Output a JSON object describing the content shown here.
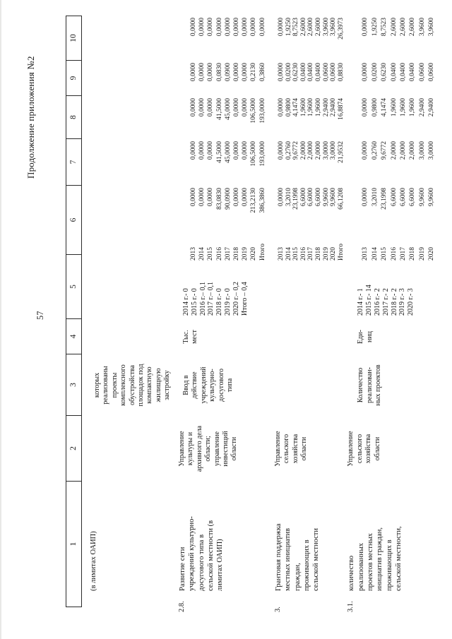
{
  "page": {
    "title": "Продолжение приложения №2",
    "number": "57"
  },
  "table": {
    "header_cells": [
      "1",
      "2",
      "3",
      "4",
      "5",
      "6",
      "7",
      "8",
      "9",
      "10"
    ],
    "continuation_row": {
      "col1": "(в лимитах ОАИП)",
      "col3_lines": [
        "которых",
        "реализованы",
        "проекты",
        "комплексного",
        "обустройства",
        "площадок под",
        "компактную",
        "жилищную",
        "застройку"
      ]
    },
    "rows": [
      {
        "num": "2.8.",
        "name_lines": [
          "Развитие сети",
          "учреждений культурно-",
          "досугового типа в",
          "сельской местности (в",
          "лимитах ОАИП)"
        ],
        "executor_lines": [
          "Управление",
          "культуры и",
          "архивного дела",
          "области;",
          "управление",
          "инвестиций",
          "области"
        ],
        "indicator_lines": [
          "Ввод в",
          "действие",
          "учреждений",
          "культурно-",
          "досугового",
          "типа"
        ],
        "unit_lines": [
          "Тыс.",
          "мест"
        ],
        "values_lines": [
          "2014 г.- 0",
          "2015 г.- 0",
          "2016 г.– 0,1",
          "2017 г.– 0,1",
          "2018 г.- 0",
          "2019 г.- 0",
          "2020 г.– 0,2",
          "Итого – 0,4"
        ],
        "finance": [
          [
            "2013",
            "0,0000",
            "0,0000",
            "0,0000",
            "0,0000",
            "0,0000"
          ],
          [
            "2014",
            "0,0000",
            "0,0000",
            "0,0000",
            "0,0000",
            "0,0000"
          ],
          [
            "2015",
            "0,0000",
            "0,0000",
            "0,0000",
            "0,0000",
            "0,0000"
          ],
          [
            "2016",
            "83,0830",
            "41,5000",
            "41,5000",
            "0,0830",
            "0,0000"
          ],
          [
            "2017",
            "90,0900",
            "45,0000",
            "45,0000",
            "0,0900",
            "0,0000"
          ],
          [
            "2018",
            "0,0000",
            "0,0000",
            "0,0000",
            "0,0000",
            "0,0000"
          ],
          [
            "2019",
            "0,0000",
            "0,0000",
            "0,0000",
            "0,0000",
            "0,0000"
          ],
          [
            "2020",
            "213,2130",
            "106,5000",
            "106,5000",
            "0,2130",
            "0,0000"
          ],
          [
            "Итого",
            "386,3860",
            "193,0000",
            "193,0000",
            "0,3860",
            "0,0000"
          ]
        ]
      },
      {
        "num": "3.",
        "name_lines": [
          "Грантовая поддержка",
          "местных инициатив",
          "граждан,",
          "проживающих в",
          "сельской местности"
        ],
        "executor_lines": [
          "Управление",
          "сельского",
          "хозяйства",
          "области"
        ],
        "indicator_lines": [],
        "unit_lines": [],
        "values_lines": [],
        "finance": [
          [
            "2013",
            "0,0000",
            "0,0000",
            "0,0000",
            "0,0000",
            "0,0000"
          ],
          [
            "2014",
            "3,2010",
            "0,2760",
            "0,9800",
            "0,0200",
            "1,9250"
          ],
          [
            "2015",
            "23,1998",
            "9,6772",
            "4,1474",
            "0,6230",
            "8,7523"
          ],
          [
            "2016",
            "6,6000",
            "2,0000",
            "1,9600",
            "0,0400",
            "2,6000"
          ],
          [
            "2017",
            "6,6000",
            "2,0000",
            "1,9600",
            "0,0400",
            "2,6000"
          ],
          [
            "2018",
            "6,6000",
            "2,0000",
            "1,9600",
            "0,0400",
            "2,6000"
          ],
          [
            "2019",
            "9,9600",
            "3,0000",
            "2,9400",
            "0,0600",
            "3,9600"
          ],
          [
            "2020",
            "9,9600",
            "3,0000",
            "2,9400",
            "0,0600",
            "3,9600"
          ],
          [
            "Итого",
            "66,1208",
            "21,9532",
            "16,8874",
            "0,8830",
            "26,3973"
          ]
        ]
      },
      {
        "num": "3.1.",
        "name_lines": [
          "количество",
          "реализованных",
          "проектов местных",
          "инициатив граждан,",
          "проживающих в",
          "сельской местности,"
        ],
        "executor_lines": [
          "Управление",
          "сельского",
          "хозяйства",
          "области"
        ],
        "indicator_lines": [
          "Количество",
          "реализован-",
          "ных проектов"
        ],
        "unit_lines": [
          "Еди-",
          "ниц"
        ],
        "values_lines": [
          "2014 г.- 1",
          "2015 г.- 14",
          "2016 г.- 2",
          "2017 г.- 2",
          "2018 г.- 2",
          "2019 г.- 3",
          "2020 г.- 3"
        ],
        "finance": [
          [
            "2013",
            "0,0000",
            "0,0000",
            "0,0000",
            "0,0000",
            "0,0000"
          ],
          [
            "2014",
            "3,2010",
            "0,2760",
            "0,9800",
            "0,0200",
            "1,9250"
          ],
          [
            "2015",
            "23,1998",
            "9,6772",
            "4,1474",
            "0,6230",
            "8,7523"
          ],
          [
            "2016",
            "6,6000",
            "2,0000",
            "1,9600",
            "0,0400",
            "2,6000"
          ],
          [
            "2017",
            "6,6000",
            "2,0000",
            "1,9600",
            "0,0400",
            "2,6000"
          ],
          [
            "2018",
            "6,6000",
            "2,0000",
            "1,9600",
            "0,0400",
            "2,6000"
          ],
          [
            "2019",
            "9,9600",
            "3,0000",
            "2,9400",
            "0,0600",
            "3,9600"
          ],
          [
            "2020",
            "9,9600",
            "3,0000",
            "2,9400",
            "0,0600",
            "3,9600"
          ]
        ]
      }
    ]
  }
}
